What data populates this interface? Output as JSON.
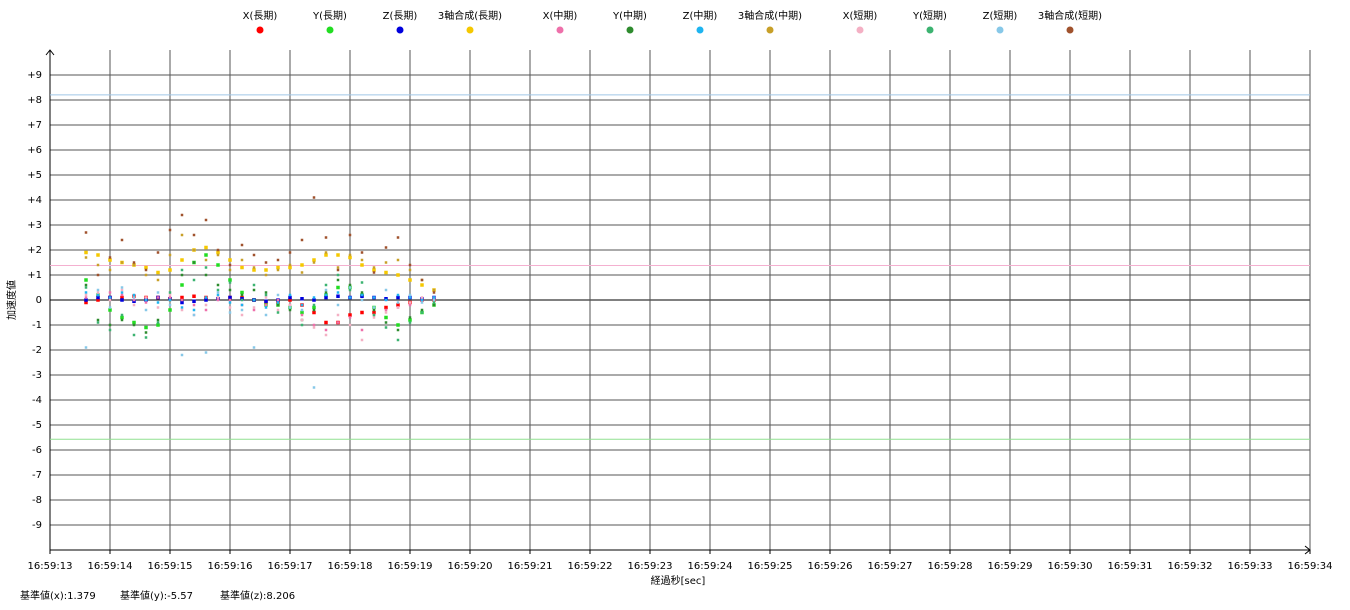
{
  "chart_data": {
    "type": "scatter",
    "x_label": "経過秒[sec]",
    "y_label": "加速度値",
    "xlim": [
      13,
      34
    ],
    "xticks": [
      {
        "value": 13,
        "label": "16:59:13"
      },
      {
        "value": 14,
        "label": "16:59:14"
      },
      {
        "value": 15,
        "label": "16:59:15"
      },
      {
        "value": 16,
        "label": "16:59:16"
      },
      {
        "value": 17,
        "label": "16:59:17"
      },
      {
        "value": 18,
        "label": "16:59:18"
      },
      {
        "value": 19,
        "label": "16:59:19"
      },
      {
        "value": 20,
        "label": "16:59:20"
      },
      {
        "value": 21,
        "label": "16:59:21"
      },
      {
        "value": 22,
        "label": "16:59:22"
      },
      {
        "value": 23,
        "label": "16:59:23"
      },
      {
        "value": 24,
        "label": "16:59:24"
      },
      {
        "value": 25,
        "label": "16:59:25"
      },
      {
        "value": 26,
        "label": "16:59:26"
      },
      {
        "value": 27,
        "label": "16:59:27"
      },
      {
        "value": 28,
        "label": "16:59:28"
      },
      {
        "value": 29,
        "label": "16:59:29"
      },
      {
        "value": 30,
        "label": "16:59:30"
      },
      {
        "value": 31,
        "label": "16:59:31"
      },
      {
        "value": 32,
        "label": "16:59:32"
      },
      {
        "value": 33,
        "label": "16:59:33"
      },
      {
        "value": 34,
        "label": "16:59:34"
      }
    ],
    "ylim": [
      -10,
      10
    ],
    "yticks": [
      -9,
      -8,
      -7,
      -6,
      -5,
      -4,
      -3,
      -2,
      -1,
      0,
      {
        "value": 1,
        "label": "+1"
      },
      {
        "value": 2,
        "label": "+2"
      },
      {
        "value": 3,
        "label": "+3"
      },
      {
        "value": 4,
        "label": "+4"
      },
      {
        "value": 5,
        "label": "+5"
      },
      {
        "value": 6,
        "label": "+6"
      },
      {
        "value": 7,
        "label": "+7"
      },
      {
        "value": 8,
        "label": "+8"
      },
      {
        "value": 9,
        "label": "+9"
      }
    ],
    "grid": true,
    "x": [
      13.6,
      13.8,
      14.0,
      14.2,
      14.4,
      14.6,
      14.8,
      15.0,
      15.2,
      15.4,
      15.6,
      15.8,
      16.0,
      16.2,
      16.4,
      16.6,
      16.8,
      17.0,
      17.2,
      17.4,
      17.6,
      17.8,
      18.0,
      18.2,
      18.4,
      18.6,
      18.8,
      19.0,
      19.2,
      19.4
    ],
    "series": [
      {
        "name": "X(長期)",
        "color": "#ff0000",
        "values": [
          -0.1,
          0.0,
          0.1,
          0.1,
          0.15,
          0.1,
          0.1,
          0.05,
          0.1,
          0.15,
          0.1,
          0.05,
          0.1,
          0.1,
          0.0,
          -0.1,
          -0.1,
          0.0,
          -0.2,
          -0.5,
          -0.9,
          -0.9,
          -0.6,
          -0.5,
          -0.5,
          -0.3,
          -0.2,
          -0.1,
          0.0,
          0.0
        ]
      },
      {
        "name": "Y(長期)",
        "color": "#22dd22",
        "values": [
          0.8,
          0.2,
          -0.4,
          -0.7,
          -0.9,
          -1.1,
          -1.0,
          -0.4,
          0.6,
          1.5,
          1.8,
          1.4,
          0.8,
          0.3,
          0.0,
          -0.2,
          -0.2,
          -0.3,
          -0.5,
          -0.3,
          0.2,
          0.5,
          0.5,
          0.2,
          -0.3,
          -0.7,
          -1.0,
          -0.8,
          -0.5,
          -0.2
        ]
      },
      {
        "name": "Z(長期)",
        "color": "#0000dd",
        "values": [
          0.0,
          0.1,
          0.1,
          0.0,
          -0.05,
          0.0,
          0.1,
          0.05,
          -0.1,
          -0.05,
          0.0,
          0.05,
          0.1,
          0.05,
          0.0,
          -0.05,
          0.0,
          0.1,
          0.05,
          0.0,
          0.1,
          0.15,
          0.1,
          0.15,
          0.1,
          0.05,
          0.1,
          0.1,
          0.05,
          0.1
        ]
      },
      {
        "name": "3軸合成(長期)",
        "color": "#f5c800",
        "values": [
          1.9,
          1.8,
          1.6,
          1.5,
          1.4,
          1.3,
          1.1,
          1.2,
          1.6,
          2.0,
          2.1,
          1.9,
          1.6,
          1.3,
          1.2,
          1.2,
          1.3,
          1.3,
          1.4,
          1.6,
          1.8,
          1.8,
          1.7,
          1.4,
          1.2,
          1.1,
          1.0,
          0.8,
          0.6,
          0.4
        ]
      },
      {
        "name": "X(中期)",
        "color": "#ee70aa",
        "values": [
          0.1,
          0.2,
          0.3,
          0.2,
          0.0,
          -0.1,
          0.1,
          0.1,
          0.0,
          -0.2,
          -0.4,
          0.0,
          0.0,
          -0.2,
          -0.4,
          -0.2,
          0.0,
          -0.2,
          -0.6,
          -1.0,
          -1.2,
          -0.9,
          -0.7,
          -1.2,
          -0.6,
          -0.4,
          -0.3,
          -0.2,
          0.0,
          0.1
        ]
      },
      {
        "name": "Y(中期)",
        "color": "#2e8b2e",
        "values": [
          0.6,
          -0.8,
          -1.0,
          -0.8,
          -1.0,
          -1.3,
          -0.8,
          0.0,
          1.0,
          1.5,
          1.0,
          0.6,
          0.4,
          0.2,
          0.4,
          0.3,
          -0.2,
          -0.4,
          -0.8,
          -0.4,
          0.3,
          0.8,
          0.6,
          0.3,
          -0.4,
          -0.9,
          -1.2,
          -0.7,
          -0.4,
          -0.2
        ]
      },
      {
        "name": "Z(中期)",
        "color": "#1eb4f0",
        "values": [
          0.3,
          0.2,
          0.1,
          0.3,
          0.2,
          0.0,
          -0.1,
          0.0,
          -0.3,
          -0.4,
          0.1,
          0.2,
          -0.1,
          -0.2,
          0.0,
          -0.3,
          -0.1,
          0.2,
          -0.2,
          0.1,
          0.2,
          0.3,
          0.1,
          0.2,
          0.1,
          0.0,
          0.2,
          0.1,
          0.0,
          0.1
        ]
      },
      {
        "name": "3軸合成(中期)",
        "color": "#c8a028",
        "values": [
          1.7,
          1.4,
          1.2,
          1.5,
          1.4,
          1.0,
          0.8,
          1.8,
          2.6,
          2.0,
          1.6,
          1.8,
          1.2,
          1.6,
          1.3,
          1.0,
          1.2,
          1.4,
          1.1,
          1.5,
          1.9,
          1.3,
          1.8,
          1.6,
          1.3,
          1.5,
          1.6,
          1.2,
          0.8,
          0.4
        ]
      },
      {
        "name": "X(短期)",
        "color": "#f4b0c4",
        "values": [
          0.2,
          0.3,
          0.0,
          0.4,
          -0.2,
          0.1,
          -0.3,
          0.2,
          -0.4,
          -0.6,
          -0.2,
          0.1,
          -0.3,
          -0.6,
          -0.3,
          0.1,
          -0.4,
          -0.2,
          -0.8,
          -1.1,
          -1.4,
          -0.6,
          -1.0,
          -1.6,
          -0.7,
          -0.5,
          -0.3,
          -0.1,
          0.1,
          0.0
        ]
      },
      {
        "name": "Y(短期)",
        "color": "#3cb371",
        "values": [
          0.5,
          -0.9,
          -1.2,
          -0.6,
          -1.4,
          -1.5,
          -0.9,
          0.3,
          1.2,
          0.8,
          1.3,
          0.4,
          0.7,
          0.0,
          0.6,
          0.2,
          -0.5,
          -0.3,
          -1.0,
          -0.2,
          0.6,
          1.0,
          0.4,
          0.7,
          -0.6,
          -1.1,
          -1.6,
          -0.9,
          -0.5,
          -0.1
        ]
      },
      {
        "name": "Z(短期)",
        "color": "#87c8e8",
        "values": [
          -1.9,
          0.4,
          -0.3,
          0.5,
          0.1,
          -0.4,
          0.3,
          -0.2,
          -2.2,
          -0.6,
          -2.1,
          0.3,
          -0.5,
          -0.4,
          -1.9,
          -0.6,
          0.2,
          -0.3,
          -0.4,
          -3.5,
          0.4,
          -0.2,
          0.5,
          0.0,
          -0.3,
          0.4,
          -0.1,
          0.2,
          -0.1,
          0.0
        ]
      },
      {
        "name": "3軸合成(短期)",
        "color": "#a0522d",
        "values": [
          2.7,
          1.0,
          1.7,
          2.4,
          1.5,
          1.2,
          1.9,
          2.8,
          3.4,
          2.6,
          3.2,
          2.0,
          1.4,
          2.2,
          1.8,
          1.5,
          1.6,
          1.9,
          2.4,
          4.1,
          2.5,
          1.2,
          2.6,
          1.9,
          1.1,
          2.1,
          2.5,
          1.4,
          0.8,
          0.3
        ]
      }
    ],
    "reference_lines": [
      {
        "label": "基準値(x):",
        "value": 1.379,
        "color": "#f4b0d0"
      },
      {
        "label": "基準値(y):",
        "value": -5.57,
        "color": "#90e090"
      },
      {
        "label": "基準値(z):",
        "value": 8.206,
        "color": "#a0c8e8"
      }
    ]
  }
}
